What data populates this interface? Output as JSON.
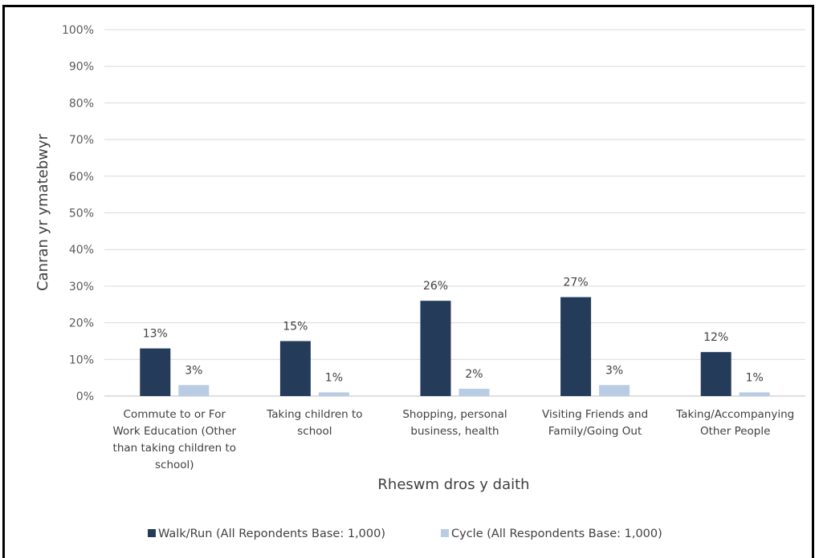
{
  "chart_data": {
    "type": "bar",
    "categories": [
      [
        "Commute to or For",
        "Work Education (Other",
        "than taking children to",
        "school)"
      ],
      [
        "Taking children to",
        "school"
      ],
      [
        "Shopping, personal",
        "business, health"
      ],
      [
        "Visiting Friends and",
        "Family/Going Out"
      ],
      [
        "Taking/Accompanying",
        "Other People"
      ]
    ],
    "series": [
      {
        "name": "Walk/Run (All Repondents Base: 1,000)",
        "values": [
          13,
          15,
          26,
          27,
          12
        ],
        "color": "#243B5A"
      },
      {
        "name": "Cycle (All Respondents Base: 1,000)",
        "values": [
          3,
          1,
          2,
          3,
          1
        ],
        "color": "#B8CCE4"
      }
    ],
    "xlabel": "Rheswm dros y daith",
    "ylabel": "Canran yr ymatebwyr",
    "ylim": [
      0,
      100
    ],
    "yticks": [
      0,
      10,
      20,
      30,
      40,
      50,
      60,
      70,
      80,
      90,
      100
    ],
    "tick_suffix": "%",
    "data_label_suffix": "%",
    "grid": true,
    "legend_position": "bottom"
  }
}
